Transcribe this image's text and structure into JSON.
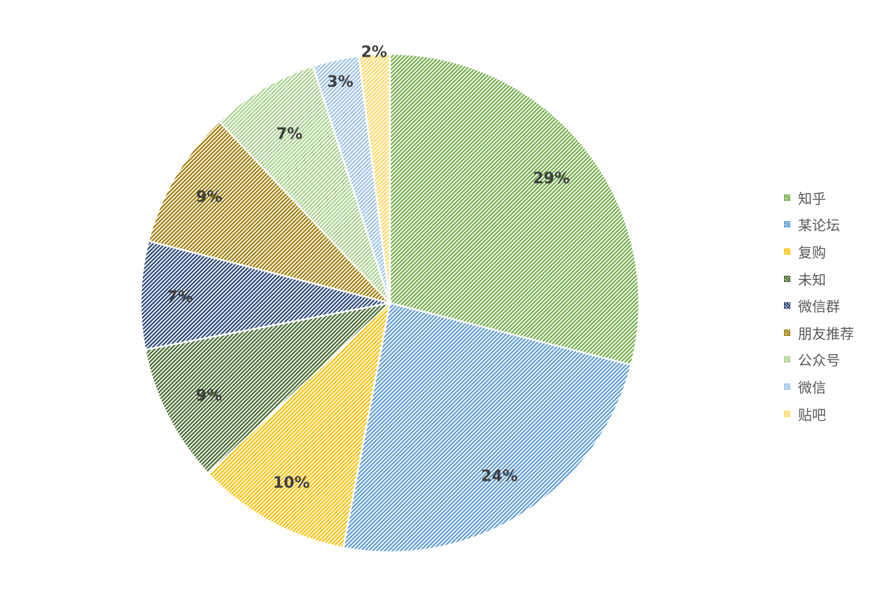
{
  "chart_data": {
    "type": "pie",
    "title": "",
    "categories": [
      "知乎",
      "某论坛",
      "复购",
      "未知",
      "微信群",
      "朋友推荐",
      "公众号",
      "微信",
      "贴吧"
    ],
    "values": [
      29,
      24,
      10,
      9,
      7,
      9,
      7,
      3,
      2
    ],
    "labels": [
      "29%",
      "24%",
      "10%",
      "9%",
      "7%",
      "9%",
      "7%",
      "3%",
      "2%"
    ],
    "colors": [
      "#70ad47",
      "#5b9bd5",
      "#ffc000",
      "#43682b",
      "#264478",
      "#9e7b00",
      "#a9d18e",
      "#9dc3e6",
      "#ffd966"
    ],
    "legend_position": "right",
    "grid": false
  }
}
